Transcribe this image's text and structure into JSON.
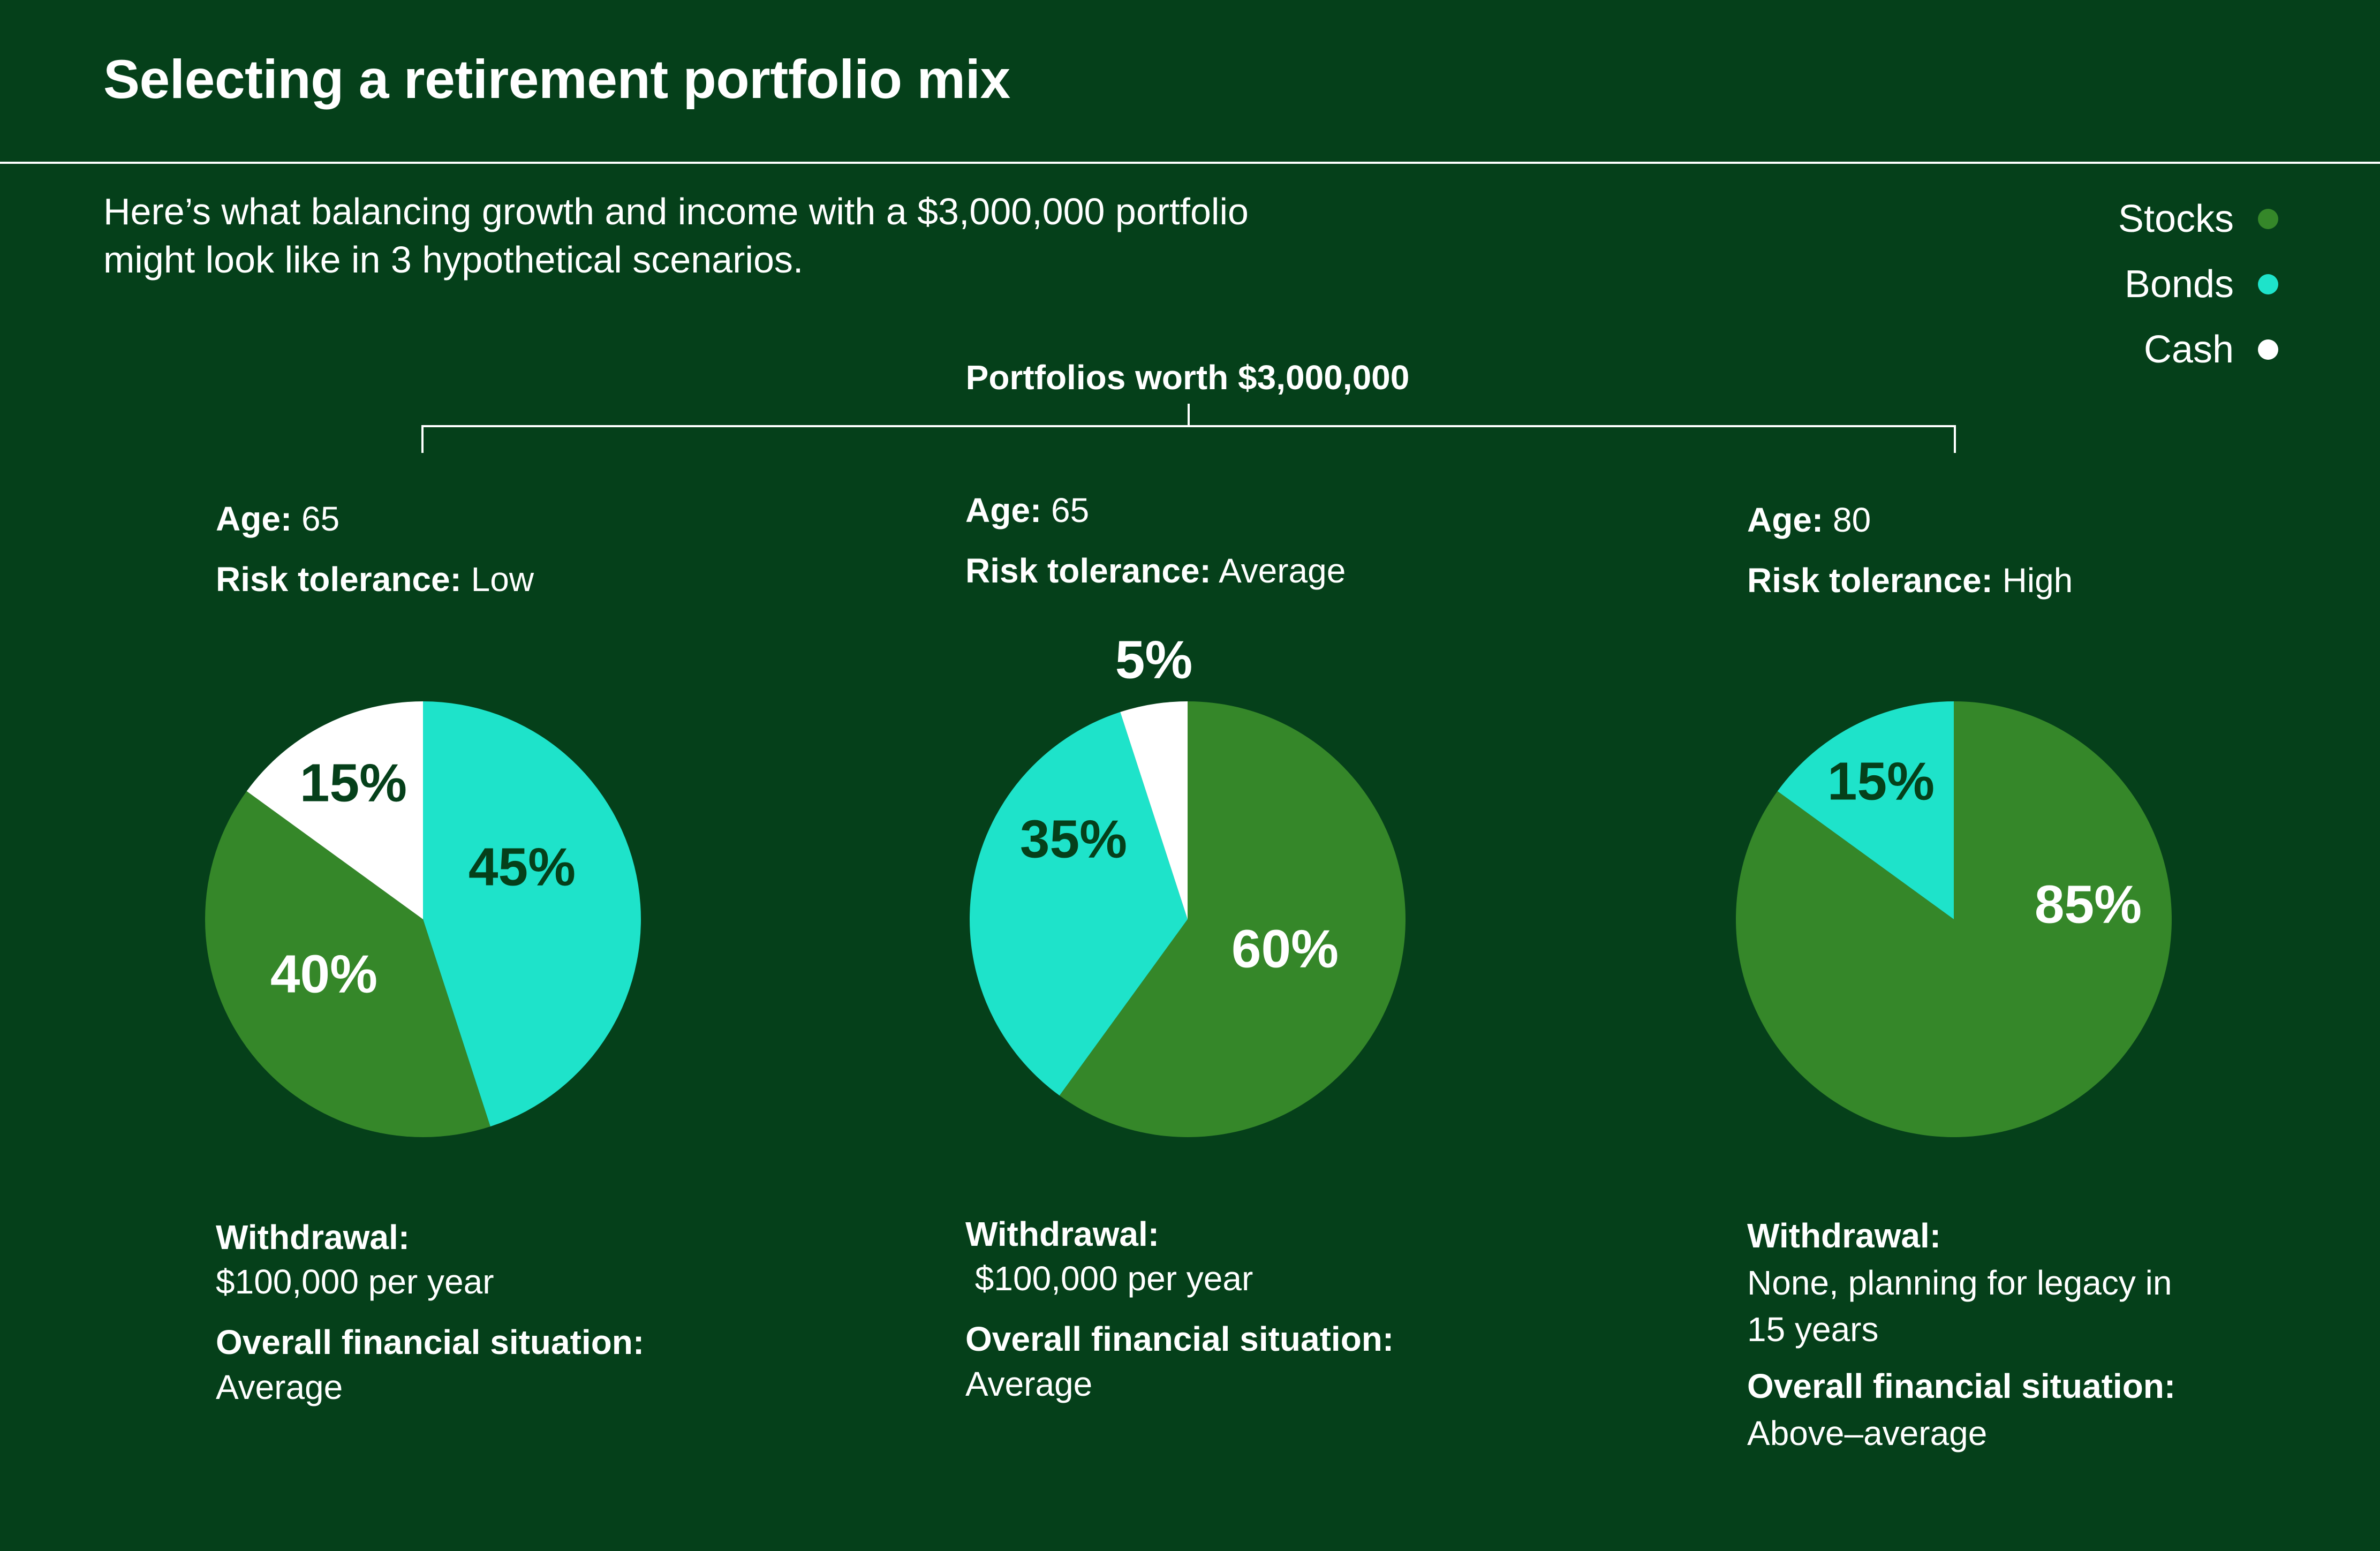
{
  "title": "Selecting a retirement portfolio mix",
  "subtitle_line1": "Here’s what balancing growth and income with a $3,000,000 portfolio",
  "subtitle_line2": "might look like in 3 hypothetical scenarios.",
  "bracket_label": "Portfolios worth $3,000,000",
  "legend": [
    {
      "label": "Stocks",
      "color": "#358729"
    },
    {
      "label": "Bonds",
      "color": "#1ee3ca"
    },
    {
      "label": "Cash",
      "color": "#ffffff"
    }
  ],
  "labels": {
    "age": "Age:",
    "risk": "Risk tolerance:",
    "withdrawal": "Withdrawal:",
    "situation": "Overall financial situation:"
  },
  "scenarios": [
    {
      "age": "65",
      "risk": "Low",
      "withdrawal_lines": [
        "$100,000 per year"
      ],
      "situation": "Average"
    },
    {
      "age": "65",
      "risk": "Average",
      "withdrawal_lines": [
        " $100,000 per year"
      ],
      "situation": "Average"
    },
    {
      "age": "80",
      "risk": "High",
      "withdrawal_lines": [
        "None, planning for legacy in",
        "15 years"
      ],
      "situation": "Above–average"
    }
  ],
  "chart_data": [
    {
      "type": "pie",
      "slices": [
        {
          "category": "Bonds",
          "value": 45,
          "label": "45%"
        },
        {
          "category": "Stocks",
          "value": 40,
          "label": "40%"
        },
        {
          "category": "Cash",
          "value": 15,
          "label": "15%"
        }
      ]
    },
    {
      "type": "pie",
      "slices": [
        {
          "category": "Stocks",
          "value": 60,
          "label": "60%"
        },
        {
          "category": "Bonds",
          "value": 35,
          "label": "35%"
        },
        {
          "category": "Cash",
          "value": 5,
          "label": "5%"
        }
      ]
    },
    {
      "type": "pie",
      "slices": [
        {
          "category": "Stocks",
          "value": 85,
          "label": "85%"
        },
        {
          "category": "Bonds",
          "value": 15,
          "label": "15%"
        }
      ]
    }
  ],
  "colors": {
    "Stocks": "#358729",
    "Bonds": "#1ee3ca",
    "Cash": "#ffffff",
    "background": "#05401a",
    "label_dark": "#05401a",
    "label_light": "#ffffff"
  }
}
